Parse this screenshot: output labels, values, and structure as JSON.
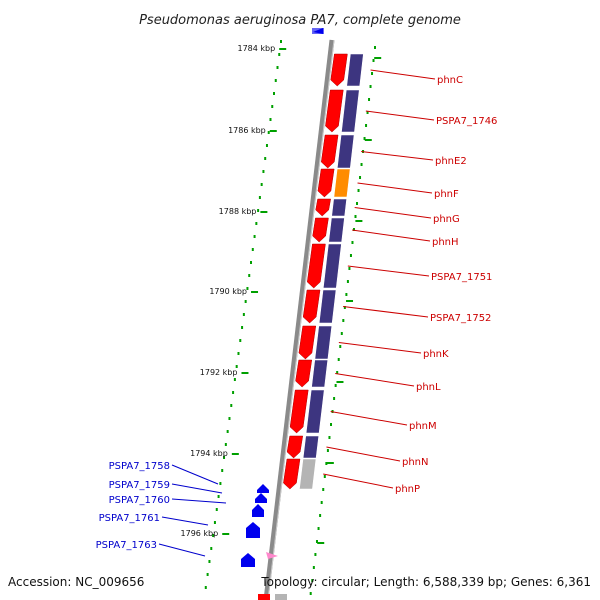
{
  "title": "Pseudomonas aeruginosa PA7, complete genome",
  "footer": {
    "accession": "Accession: NC_009656",
    "topology": "Topology: circular; Length: 6,588,339 bp; Genes: 6,361"
  },
  "kbp_labels": [
    "1784 kbp",
    "1786 kbp",
    "1788 kbp",
    "1790 kbp",
    "1792 kbp",
    "1794 kbp",
    "1796 kbp"
  ],
  "right_genes": [
    "phnC",
    "PSPA7_1746",
    "phnE2",
    "phnF",
    "phnG",
    "phnH",
    "PSPA7_1751",
    "PSPA7_1752",
    "phnK",
    "phnL",
    "phnM",
    "phnN",
    "phnP"
  ],
  "left_genes": [
    "PSPA7_1758",
    "PSPA7_1759",
    "PSPA7_1760",
    "PSPA7_1761",
    "PSPA7_1763"
  ],
  "colors": {
    "forward_gene": "#ff0000",
    "cog_track": "#3d3580",
    "cog_highlight": "#ff8c00",
    "cog_unknown": "#b4b4b4",
    "reverse_gene": "#0000ee",
    "backbone": "#808080",
    "ticks": "#00a000",
    "label_red": "#cc0000",
    "label_blue": "#0000cc"
  }
}
